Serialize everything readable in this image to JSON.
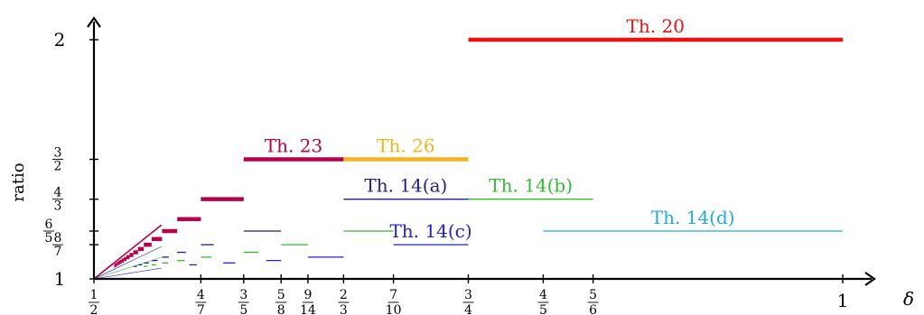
{
  "chart_data": {
    "type": "line",
    "title": "",
    "xlabel": "δ",
    "ylabel": "ratio",
    "xlim": [
      0.5,
      1.0
    ],
    "ylim": [
      1.0,
      2.0
    ],
    "x_ticks": [
      {
        "value": 0.5,
        "num": "1",
        "den": "2"
      },
      {
        "value": 0.5714,
        "num": "4",
        "den": "7"
      },
      {
        "value": 0.6,
        "num": "3",
        "den": "5"
      },
      {
        "value": 0.625,
        "num": "5",
        "den": "8"
      },
      {
        "value": 0.6429,
        "num": "9",
        "den": "14"
      },
      {
        "value": 0.6667,
        "num": "2",
        "den": "3"
      },
      {
        "value": 0.7,
        "num": "7",
        "den": "10"
      },
      {
        "value": 0.75,
        "num": "3",
        "den": "4"
      },
      {
        "value": 0.8,
        "num": "4",
        "den": "5"
      },
      {
        "value": 0.8333,
        "num": "5",
        "den": "6"
      },
      {
        "value": 1.0,
        "text": "1"
      }
    ],
    "y_ticks": [
      {
        "value": 1.0,
        "text": "1"
      },
      {
        "value": 1.1429,
        "num": "8",
        "den": "7"
      },
      {
        "value": 1.2,
        "num": "6",
        "den": "5"
      },
      {
        "value": 1.3333,
        "num": "4",
        "den": "3"
      },
      {
        "value": 1.5,
        "num": "3",
        "den": "2"
      },
      {
        "value": 2.0,
        "text": "2"
      }
    ],
    "series": [
      {
        "name": "Th. 20",
        "color": "#ee1111",
        "weight": "thick",
        "segments": [
          [
            0.75,
            1.0,
            2.0
          ]
        ]
      },
      {
        "name": "Th. 23",
        "color": "#b8004a",
        "weight": "thick",
        "segments": [
          [
            0.6,
            0.6667,
            1.5
          ]
        ]
      },
      {
        "name": "Th. 26",
        "color": "#f4b41a",
        "weight": "thick",
        "segments": [
          [
            0.6667,
            0.75,
            1.5
          ]
        ]
      },
      {
        "name": "Th. 14(a)",
        "color": "#1f1f8f",
        "weight": "thin",
        "segments": [
          [
            0.6667,
            0.75,
            1.3333
          ]
        ]
      },
      {
        "name": "Th. 14(b)",
        "color": "#33bb33",
        "weight": "thin",
        "segments": [
          [
            0.75,
            0.8333,
            1.3333
          ],
          [
            0.6667,
            0.7,
            1.2
          ]
        ]
      },
      {
        "name": "Th. 14(c)",
        "color": "#2222cc",
        "weight": "thin",
        "segments": [
          [
            0.7,
            0.75,
            1.1429
          ]
        ]
      },
      {
        "name": "Th. 14(d)",
        "color": "#22aadd",
        "weight": "thin",
        "segments": [
          [
            0.8,
            1.0,
            1.2
          ]
        ]
      },
      {
        "name": "",
        "color": "#b8004a",
        "weight": "steps",
        "segments": [
          [
            0.5714,
            0.6,
            1.3333
          ],
          [
            0.5556,
            0.5714,
            1.25
          ],
          [
            0.5455,
            0.5556,
            1.2
          ],
          [
            0.5385,
            0.5455,
            1.1667
          ],
          [
            0.5333,
            0.5385,
            1.1429
          ],
          [
            0.5294,
            0.5333,
            1.125
          ],
          [
            0.5263,
            0.5294,
            1.1111
          ],
          [
            0.5238,
            0.5263,
            1.1
          ],
          [
            0.5217,
            0.5238,
            1.0909
          ],
          [
            0.52,
            0.5217,
            1.0833
          ],
          [
            0.5185,
            0.52,
            1.0769
          ],
          [
            0.5172,
            0.5185,
            1.0714
          ],
          [
            0.5161,
            0.5172,
            1.0667
          ],
          [
            0.5152,
            0.5161,
            1.0625
          ],
          [
            0.5143,
            0.5152,
            1.0588
          ],
          [
            0.5135,
            0.5143,
            1.0556
          ]
        ]
      },
      {
        "name": "",
        "color": "#1f1f8f",
        "weight": "dashes",
        "segments": [
          [
            0.6,
            0.625,
            1.2
          ],
          [
            0.5714,
            0.58,
            1.1429
          ],
          [
            0.5556,
            0.5614,
            1.1111
          ],
          [
            0.5455,
            0.55,
            1.0909
          ],
          [
            0.5385,
            0.5425,
            1.0769
          ],
          [
            0.5333,
            0.5365,
            1.0667
          ],
          [
            0.5294,
            0.5322,
            1.0588
          ],
          [
            0.5263,
            0.5288,
            1.0526
          ]
        ]
      },
      {
        "name": "",
        "color": "#33bb33",
        "weight": "dashes",
        "segments": [
          [
            0.625,
            0.6429,
            1.1429
          ],
          [
            0.6,
            0.61,
            1.1111
          ],
          [
            0.5714,
            0.5785,
            1.0909
          ],
          [
            0.5556,
            0.5606,
            1.0769
          ],
          [
            0.5455,
            0.5495,
            1.0667
          ],
          [
            0.5385,
            0.5415,
            1.0588
          ],
          [
            0.5333,
            0.5358,
            1.0526
          ]
        ]
      },
      {
        "name": "",
        "color": "#2222cc",
        "weight": "dashes",
        "segments": [
          [
            0.6429,
            0.6667,
            1.0909
          ],
          [
            0.615,
            0.625,
            1.0769
          ],
          [
            0.5864,
            0.5944,
            1.0667
          ],
          [
            0.5637,
            0.5687,
            1.0588
          ]
        ]
      },
      {
        "name": "",
        "color": "#1f1f8f",
        "weight": "thin",
        "segments": [
          [
            0.5,
            0.5714,
            1.0
          ],
          [
            0.5,
            0.5556,
            1.0
          ]
        ]
      }
    ],
    "labels": [
      {
        "text": "Th. 20",
        "color": "#ee1111",
        "x": 0.875,
        "y": 2.0
      },
      {
        "text": "Th. 23",
        "color": "#b8004a",
        "x": 0.6333,
        "y": 1.5
      },
      {
        "text": "Th. 26",
        "color": "#f4b41a",
        "x": 0.7083,
        "y": 1.5
      },
      {
        "text": "Th. 14(a)",
        "color": "#1f1f8f",
        "x": 0.7083,
        "y": 1.3333
      },
      {
        "text": "Th. 14(b)",
        "color": "#33bb33",
        "x": 0.7917,
        "y": 1.3333
      },
      {
        "text": "Th. 14(c)",
        "color": "#2222cc",
        "x": 0.725,
        "y": 1.1429
      },
      {
        "text": "Th. 14(d)",
        "color": "#22aadd",
        "x": 0.9,
        "y": 1.2
      }
    ],
    "grid": false,
    "legend": "none"
  }
}
